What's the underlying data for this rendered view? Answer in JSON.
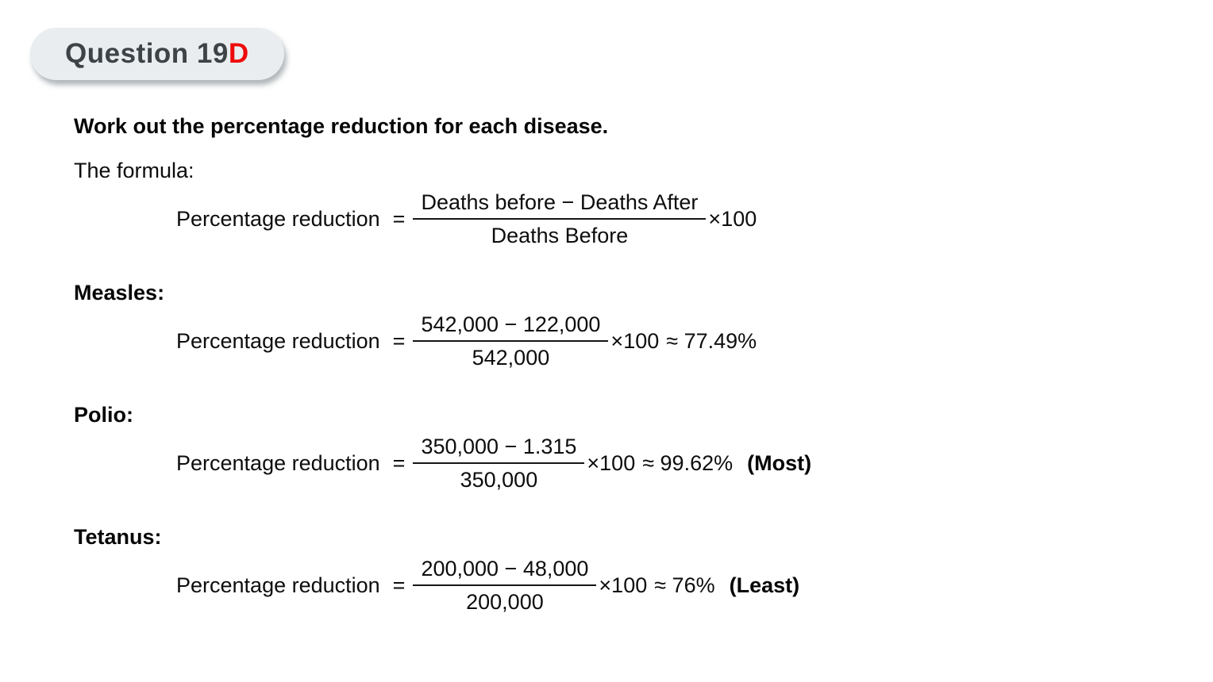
{
  "page": {
    "background": "#ffffff",
    "text_color": "#0d0d0d"
  },
  "badge": {
    "text_main": "Question 19",
    "text_accent": "D",
    "bg_color": "#e9edf0",
    "text_color": "#3d4347",
    "accent_color": "#ee0b0b"
  },
  "intro": {
    "heading": "Work out the percentage reduction for each disease.",
    "formula_label": "The formula:"
  },
  "formula": {
    "lhs": "Percentage reduction",
    "equals": "=",
    "numerator": "Deaths before − Deaths After",
    "denominator": "Deaths Before",
    "multiplier": "×100"
  },
  "sections": [
    {
      "title": "Measles:",
      "lhs": "Percentage reduction",
      "equals": "=",
      "numerator": "542,000 − 122,000",
      "denominator": "542,000",
      "multiplier": "×100",
      "result": "≈ 77.49%",
      "note": ""
    },
    {
      "title": "Polio:",
      "lhs": "Percentage reduction",
      "equals": "=",
      "numerator": "350,000 − 1.315",
      "denominator": "350,000",
      "multiplier": "×100",
      "result": "≈ 99.62%",
      "note": "(Most)"
    },
    {
      "title": "Tetanus:",
      "lhs": "Percentage reduction",
      "equals": "=",
      "numerator": "200,000 − 48,000",
      "denominator": "200,000",
      "multiplier": "×100",
      "result": "≈ 76%",
      "note": "(Least)"
    }
  ]
}
